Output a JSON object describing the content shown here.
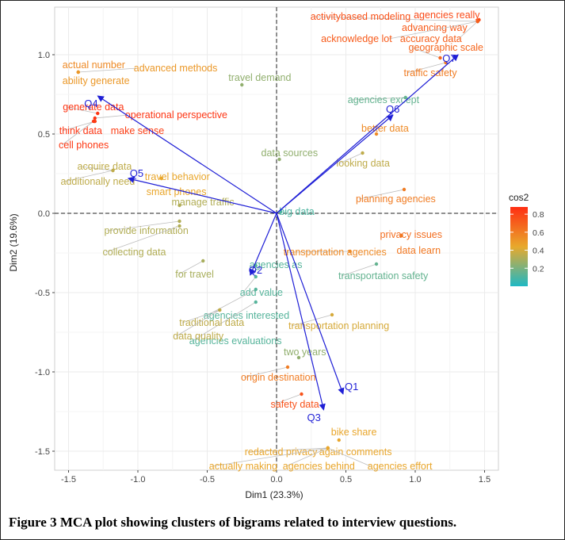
{
  "caption": "Figure 3 MCA plot showing clusters of bigrams related to interview questions.",
  "chart_data": {
    "type": "scatter",
    "xlabel": "Dim1 (23.3%)",
    "ylabel": "Dim2 (19.6%)",
    "xlim": [
      -1.6,
      1.6
    ],
    "ylim": [
      -1.62,
      1.3
    ],
    "xticks": [
      -1.5,
      -1.0,
      -0.5,
      0.0,
      0.5,
      1.0,
      1.5
    ],
    "yticks": [
      -1.5,
      -1.0,
      -0.5,
      0.0,
      0.5,
      1.0
    ],
    "grid": true,
    "reference_lines": [
      0,
      0
    ],
    "legend": {
      "title": "cos2",
      "position": "right",
      "ticks": [
        0.2,
        0.4,
        0.6,
        0.8
      ],
      "range": [
        0.0,
        0.88
      ]
    },
    "colors": {
      "low": "#1fb8c4",
      "mid": "#e8a92c",
      "high": "#ff2e12",
      "arrow": "#1f1fd6"
    },
    "points": [
      {
        "label": "activitybased modeling",
        "x": 1.45,
        "y": 1.21,
        "cos2": 0.75
      },
      {
        "label": "agencies really",
        "x": 1.46,
        "y": 1.22,
        "cos2": 0.78
      },
      {
        "label": "advancing way",
        "x": 1.45,
        "y": 1.21,
        "cos2": 0.72
      },
      {
        "label": "acknowledge lot",
        "x": 1.45,
        "y": 1.21,
        "cos2": 0.72
      },
      {
        "label": "accuracy data",
        "x": 1.45,
        "y": 1.21,
        "cos2": 0.7
      },
      {
        "label": "geographic scale",
        "x": 1.18,
        "y": 0.98,
        "cos2": 0.68
      },
      {
        "label": "traffic safety",
        "x": 1.22,
        "y": 0.95,
        "cos2": 0.6
      },
      {
        "label": "actual number",
        "x": -1.43,
        "y": 0.89,
        "cos2": 0.55
      },
      {
        "label": "advanced methods",
        "x": -1.43,
        "y": 0.89,
        "cos2": 0.5
      },
      {
        "label": "ability generate",
        "x": -1.43,
        "y": 0.89,
        "cos2": 0.5
      },
      {
        "label": "travel demand",
        "x": -0.25,
        "y": 0.81,
        "cos2": 0.25
      },
      {
        "label": "generate data",
        "x": -1.29,
        "y": 0.63,
        "cos2": 0.85
      },
      {
        "label": "operational perspective",
        "x": -1.31,
        "y": 0.6,
        "cos2": 0.85
      },
      {
        "label": "think data",
        "x": -1.31,
        "y": 0.58,
        "cos2": 0.85
      },
      {
        "label": "make sense",
        "x": -1.31,
        "y": 0.58,
        "cos2": 0.82
      },
      {
        "label": "cell phones",
        "x": -1.32,
        "y": 0.58,
        "cos2": 0.84
      },
      {
        "label": "agencies except",
        "x": 0.93,
        "y": 0.73,
        "cos2": 0.15
      },
      {
        "label": "better data",
        "x": 0.72,
        "y": 0.5,
        "cos2": 0.55
      },
      {
        "label": "data sources",
        "x": 0.02,
        "y": 0.34,
        "cos2": 0.25
      },
      {
        "label": "looking data",
        "x": 0.62,
        "y": 0.38,
        "cos2": 0.35
      },
      {
        "label": "acquire data",
        "x": -1.18,
        "y": 0.27,
        "cos2": 0.35
      },
      {
        "label": "additionally need",
        "x": -1.18,
        "y": 0.27,
        "cos2": 0.35
      },
      {
        "label": "travel behavior",
        "x": -0.83,
        "y": 0.22,
        "cos2": 0.45
      },
      {
        "label": "smart phones",
        "x": -0.83,
        "y": 0.22,
        "cos2": 0.45
      },
      {
        "label": "planning agencies",
        "x": 0.92,
        "y": 0.15,
        "cos2": 0.6
      },
      {
        "label": "manage traffic",
        "x": -0.7,
        "y": 0.05,
        "cos2": 0.32
      },
      {
        "label": "big data",
        "x": 0.03,
        "y": 0.01,
        "cos2": 0.1
      },
      {
        "label": "provide information",
        "x": -0.7,
        "y": -0.05,
        "cos2": 0.32
      },
      {
        "label": "collecting data",
        "x": -0.7,
        "y": -0.08,
        "cos2": 0.32
      },
      {
        "label": "privacy issues",
        "x": 0.9,
        "y": -0.14,
        "cos2": 0.65
      },
      {
        "label": "data learn",
        "x": 0.9,
        "y": -0.14,
        "cos2": 0.62
      },
      {
        "label": "transportation agencies",
        "x": 0.53,
        "y": -0.24,
        "cos2": 0.55
      },
      {
        "label": "transportation safety",
        "x": 0.72,
        "y": -0.32,
        "cos2": 0.15
      },
      {
        "label": "for travel",
        "x": -0.53,
        "y": -0.3,
        "cos2": 0.3
      },
      {
        "label": "agencies as",
        "x": -0.15,
        "y": -0.33,
        "cos2": 0.12
      },
      {
        "label": "add value",
        "x": -0.15,
        "y": -0.4,
        "cos2": 0.12
      },
      {
        "label": "agencies interested",
        "x": -0.15,
        "y": -0.48,
        "cos2": 0.12
      },
      {
        "label": "agencies evaluations",
        "x": -0.15,
        "y": -0.56,
        "cos2": 0.12
      },
      {
        "label": "traditional data",
        "x": -0.41,
        "y": -0.61,
        "cos2": 0.35
      },
      {
        "label": "data quality",
        "x": -0.41,
        "y": -0.61,
        "cos2": 0.35
      },
      {
        "label": "transportation planning",
        "x": 0.4,
        "y": -0.64,
        "cos2": 0.4
      },
      {
        "label": "two years",
        "x": 0.16,
        "y": -0.91,
        "cos2": 0.25
      },
      {
        "label": "origin destination",
        "x": 0.08,
        "y": -0.97,
        "cos2": 0.6
      },
      {
        "label": "safety data",
        "x": 0.18,
        "y": -1.14,
        "cos2": 0.75
      },
      {
        "label": "bike share",
        "x": 0.45,
        "y": -1.43,
        "cos2": 0.45
      },
      {
        "label": "redacted privacy",
        "x": 0.37,
        "y": -1.48,
        "cos2": 0.45
      },
      {
        "label": "again comments",
        "x": 0.37,
        "y": -1.48,
        "cos2": 0.45
      },
      {
        "label": "actually making",
        "x": 0.37,
        "y": -1.48,
        "cos2": 0.45
      },
      {
        "label": "agencies behind",
        "x": 0.37,
        "y": -1.48,
        "cos2": 0.45
      },
      {
        "label": "agencies effort",
        "x": 0.37,
        "y": -1.48,
        "cos2": 0.45
      }
    ],
    "arrows": [
      {
        "label": "Q1",
        "x": 0.48,
        "y": -1.14
      },
      {
        "label": "Q2",
        "x": -0.19,
        "y": -0.39
      },
      {
        "label": "Q3",
        "x": 0.34,
        "y": -1.24
      },
      {
        "label": "Q4",
        "x": -1.29,
        "y": 0.74
      },
      {
        "label": "Q5",
        "x": -1.07,
        "y": 0.22
      },
      {
        "label": "Q6",
        "x": 0.84,
        "y": 0.62
      },
      {
        "label": "Q7",
        "x": 1.31,
        "y": 1.0
      }
    ]
  }
}
